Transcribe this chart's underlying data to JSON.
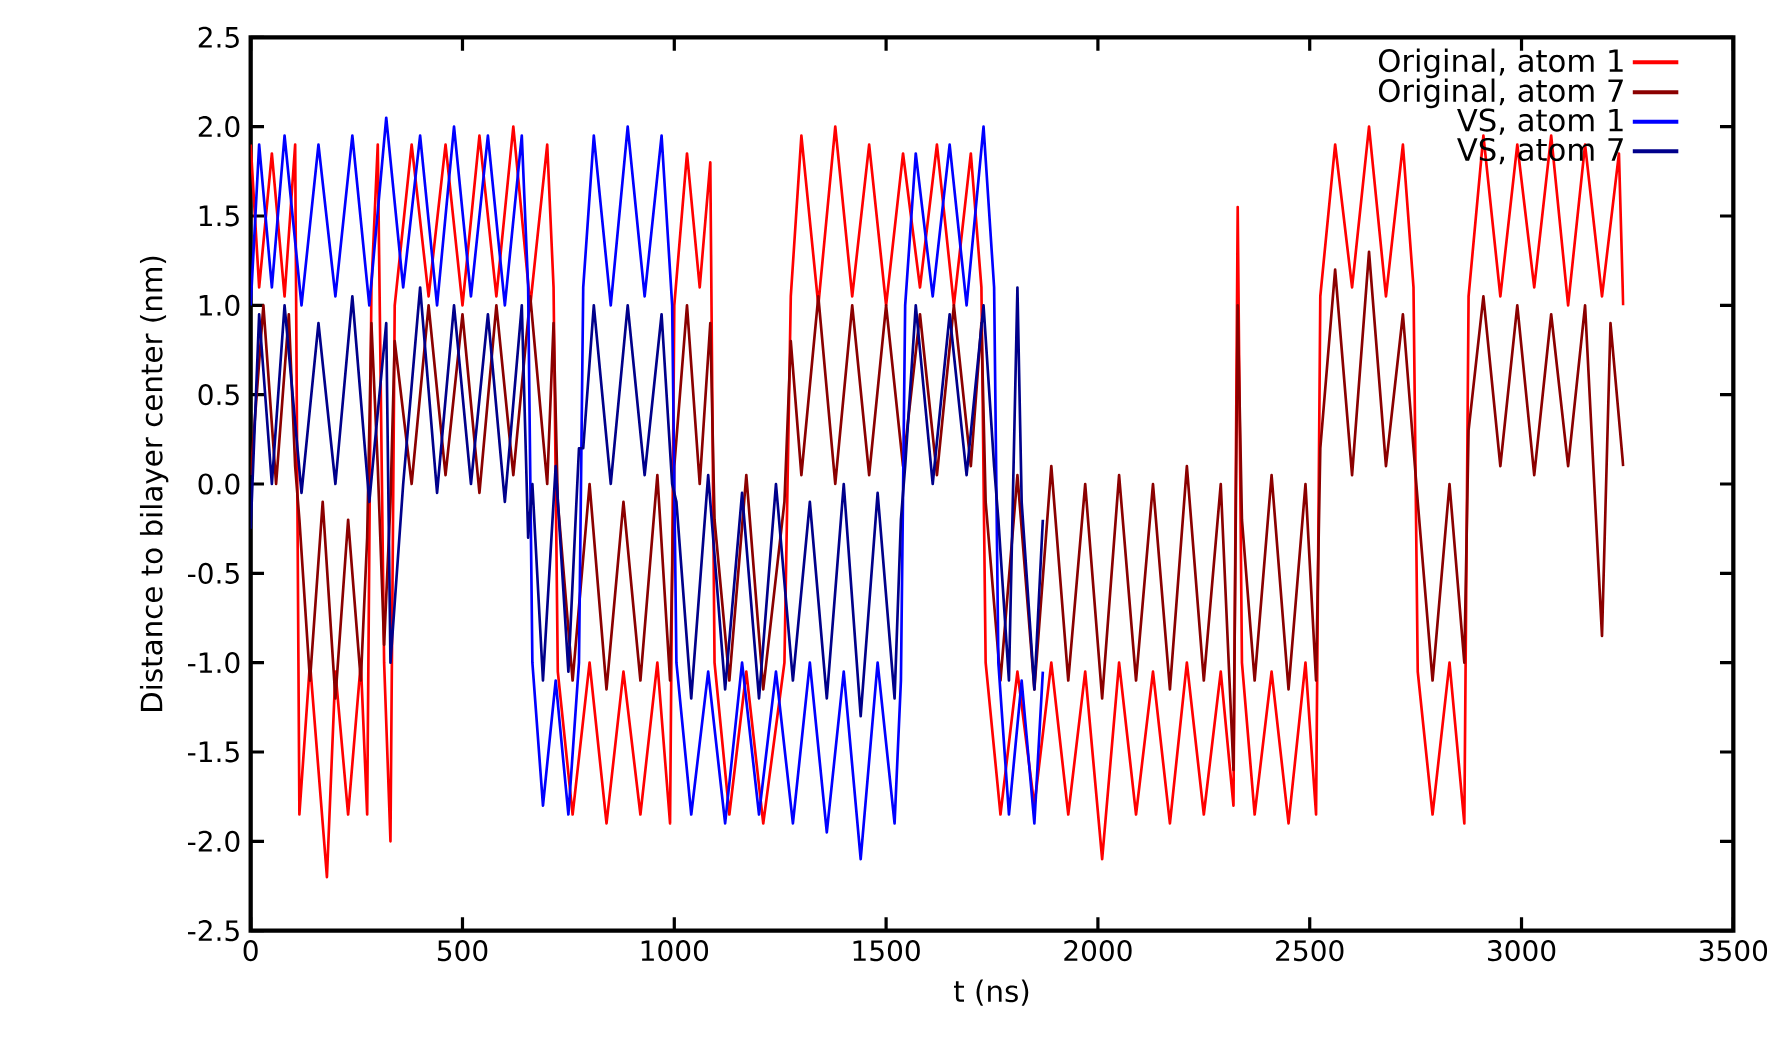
{
  "chart_data": {
    "type": "line",
    "xlabel": "t (ns)",
    "ylabel": "Distance to bilayer center (nm)",
    "xlim": [
      0,
      3500
    ],
    "ylim": [
      -2.5,
      2.5
    ],
    "xticks": [
      0,
      500,
      1000,
      1500,
      2000,
      2500,
      3000,
      3500
    ],
    "yticks": [
      2.5,
      {
        "value": 2.0,
        "label": "2.0"
      },
      1.5,
      {
        "value": 1.0,
        "label": "1.0"
      },
      0.5,
      {
        "value": 0.0,
        "label": "0.0"
      },
      -0.5,
      {
        "value": -1.0,
        "label": "-1.0"
      },
      -1.5,
      {
        "value": -2.0,
        "label": "-2.0"
      },
      -2.5
    ],
    "grid": false,
    "legend": "top right",
    "marker": "none",
    "line_style": "solid",
    "series": [
      {
        "name": "Original, atom 1",
        "color": "#ff0000",
        "x": [
          0,
          20,
          50,
          80,
          105,
          115,
          140,
          170,
          180,
          200,
          230,
          260,
          275,
          285,
          300,
          315,
          330,
          340,
          380,
          420,
          460,
          500,
          540,
          580,
          620,
          660,
          700,
          715,
          725,
          760,
          800,
          840,
          880,
          920,
          960,
          990,
          1000,
          1030,
          1060,
          1085,
          1095,
          1130,
          1170,
          1210,
          1260,
          1275,
          1300,
          1340,
          1380,
          1420,
          1460,
          1500,
          1540,
          1580,
          1620,
          1660,
          1700,
          1725,
          1735,
          1770,
          1810,
          1850,
          1890,
          1930,
          1970,
          2010,
          2050,
          2090,
          2130,
          2170,
          2210,
          2250,
          2290,
          2320,
          2330,
          2340,
          2370,
          2410,
          2450,
          2490,
          2515,
          2525,
          2560,
          2600,
          2640,
          2680,
          2720,
          2745,
          2755,
          2790,
          2830,
          2865,
          2875,
          2910,
          2950,
          2990,
          3030,
          3070,
          3110,
          3150,
          3190,
          3230,
          3240
        ],
        "values": [
          1.9,
          1.1,
          1.85,
          1.05,
          1.9,
          -1.85,
          -1.0,
          -1.9,
          -2.2,
          -1.05,
          -1.85,
          -1.0,
          -1.85,
          1.1,
          1.9,
          -1.0,
          -2.0,
          1.0,
          1.9,
          1.05,
          1.9,
          1.0,
          1.95,
          1.05,
          2.0,
          1.0,
          1.9,
          1.1,
          -1.05,
          -1.85,
          -1.0,
          -1.9,
          -1.05,
          -1.85,
          -1.0,
          -1.9,
          1.0,
          1.85,
          1.1,
          1.8,
          -1.0,
          -1.85,
          -1.05,
          -1.9,
          -1.0,
          1.05,
          1.95,
          1.0,
          2.0,
          1.05,
          1.9,
          1.0,
          1.85,
          1.1,
          1.9,
          1.0,
          1.85,
          1.1,
          -1.0,
          -1.85,
          -1.05,
          -1.8,
          -1.0,
          -1.85,
          -1.05,
          -2.1,
          -1.0,
          -1.85,
          -1.05,
          -1.9,
          -1.0,
          -1.85,
          -1.05,
          -1.8,
          1.55,
          -1.0,
          -1.85,
          -1.05,
          -1.9,
          -1.0,
          -1.85,
          1.05,
          1.9,
          1.1,
          2.0,
          1.05,
          1.9,
          1.1,
          -1.05,
          -1.85,
          -1.0,
          -1.9,
          1.05,
          1.95,
          1.05,
          1.9,
          1.1,
          1.95,
          1.0,
          1.9,
          1.05,
          1.85,
          1.0
        ]
      },
      {
        "name": "Original, atom 7",
        "color": "#8b0000",
        "x": [
          0,
          30,
          60,
          90,
          105,
          115,
          140,
          170,
          200,
          230,
          260,
          275,
          285,
          300,
          315,
          330,
          340,
          380,
          420,
          460,
          500,
          540,
          580,
          620,
          660,
          700,
          715,
          725,
          760,
          800,
          840,
          880,
          920,
          960,
          990,
          1000,
          1030,
          1060,
          1085,
          1095,
          1130,
          1170,
          1210,
          1260,
          1275,
          1300,
          1340,
          1380,
          1420,
          1460,
          1500,
          1540,
          1580,
          1620,
          1660,
          1700,
          1725,
          1735,
          1770,
          1810,
          1850,
          1890,
          1930,
          1970,
          2010,
          2050,
          2090,
          2130,
          2170,
          2210,
          2250,
          2290,
          2320,
          2330,
          2340,
          2370,
          2410,
          2450,
          2490,
          2515,
          2525,
          2560,
          2600,
          2640,
          2680,
          2720,
          2745,
          2755,
          2790,
          2830,
          2865,
          2875,
          2910,
          2950,
          2990,
          3030,
          3070,
          3110,
          3150,
          3190,
          3210,
          3240
        ],
        "values": [
          0.05,
          1.0,
          0.0,
          0.95,
          0.1,
          -0.2,
          -1.1,
          -0.1,
          -1.2,
          -0.2,
          -1.1,
          -0.3,
          0.9,
          0.1,
          -0.9,
          -0.1,
          0.8,
          0.0,
          1.0,
          0.05,
          0.95,
          -0.05,
          1.0,
          0.05,
          1.05,
          0.0,
          0.9,
          -0.1,
          -1.1,
          0.0,
          -1.15,
          -0.1,
          -1.1,
          0.05,
          -1.1,
          0.1,
          1.0,
          0.0,
          0.9,
          -0.2,
          -1.1,
          0.05,
          -1.15,
          -0.1,
          0.8,
          0.05,
          1.05,
          0.0,
          1.0,
          0.05,
          1.0,
          0.1,
          0.95,
          0.05,
          1.0,
          0.1,
          0.9,
          -0.1,
          -1.1,
          0.05,
          -1.15,
          0.1,
          -1.1,
          0.0,
          -1.2,
          0.05,
          -1.1,
          0.0,
          -1.15,
          0.1,
          -1.1,
          0.0,
          -1.6,
          1.0,
          -0.2,
          -1.1,
          0.05,
          -1.15,
          0.0,
          -1.1,
          0.2,
          1.2,
          0.05,
          1.3,
          0.1,
          0.95,
          0.2,
          -0.1,
          -1.1,
          0.0,
          -1.0,
          0.3,
          1.05,
          0.1,
          1.0,
          0.05,
          0.95,
          0.1,
          1.0,
          -0.85,
          0.9,
          0.1
        ]
      },
      {
        "name": "VS, atom 1",
        "color": "#0000ff",
        "x": [
          0,
          20,
          50,
          80,
          120,
          160,
          200,
          240,
          280,
          320,
          360,
          400,
          440,
          480,
          520,
          560,
          600,
          640,
          655,
          665,
          690,
          720,
          750,
          775,
          785,
          810,
          850,
          890,
          930,
          970,
          995,
          1005,
          1040,
          1080,
          1120,
          1160,
          1200,
          1240,
          1280,
          1320,
          1360,
          1400,
          1440,
          1480,
          1520,
          1535,
          1545,
          1570,
          1610,
          1650,
          1690,
          1730,
          1755,
          1765,
          1790,
          1820,
          1850,
          1870
        ],
        "values": [
          1.0,
          1.9,
          1.1,
          1.95,
          1.0,
          1.9,
          1.05,
          1.95,
          1.0,
          2.05,
          1.1,
          1.95,
          1.0,
          2.0,
          1.05,
          1.95,
          1.0,
          1.95,
          1.1,
          -1.0,
          -1.8,
          -1.1,
          -1.85,
          -1.0,
          1.1,
          1.95,
          1.0,
          2.0,
          1.05,
          1.95,
          1.0,
          -1.0,
          -1.85,
          -1.05,
          -1.9,
          -1.0,
          -1.85,
          -1.05,
          -1.9,
          -1.0,
          -1.95,
          -1.05,
          -2.1,
          -1.0,
          -1.9,
          -1.1,
          1.0,
          1.85,
          1.05,
          1.9,
          1.0,
          2.0,
          1.1,
          -1.0,
          -1.85,
          -1.1,
          -1.9,
          -1.05
        ]
      },
      {
        "name": "VS, atom 7",
        "color": "#00008b",
        "x": [
          0,
          20,
          50,
          80,
          120,
          160,
          200,
          240,
          280,
          320,
          330,
          360,
          400,
          440,
          480,
          520,
          560,
          600,
          640,
          655,
          665,
          690,
          720,
          750,
          775,
          785,
          810,
          850,
          890,
          930,
          970,
          995,
          1005,
          1040,
          1080,
          1120,
          1160,
          1200,
          1240,
          1280,
          1320,
          1360,
          1400,
          1440,
          1480,
          1520,
          1535,
          1545,
          1570,
          1610,
          1650,
          1690,
          1730,
          1755,
          1765,
          1790,
          1810,
          1820,
          1850,
          1870
        ],
        "values": [
          -0.25,
          0.95,
          0.0,
          1.0,
          -0.05,
          0.9,
          0.0,
          1.05,
          -0.1,
          0.9,
          -1.0,
          0.0,
          1.1,
          -0.05,
          1.0,
          0.0,
          0.95,
          -0.1,
          1.0,
          -0.3,
          0.0,
          -1.1,
          0.1,
          -1.05,
          0.2,
          0.2,
          1.0,
          0.0,
          1.0,
          0.05,
          0.95,
          0.0,
          -0.1,
          -1.2,
          0.05,
          -1.15,
          -0.05,
          -1.2,
          0.0,
          -1.1,
          -0.1,
          -1.2,
          0.0,
          -1.3,
          -0.05,
          -1.2,
          -0.2,
          0.1,
          1.0,
          0.0,
          0.95,
          0.05,
          1.0,
          0.1,
          -0.2,
          -1.1,
          1.1,
          -0.1,
          -1.15,
          -0.2
        ]
      }
    ]
  }
}
